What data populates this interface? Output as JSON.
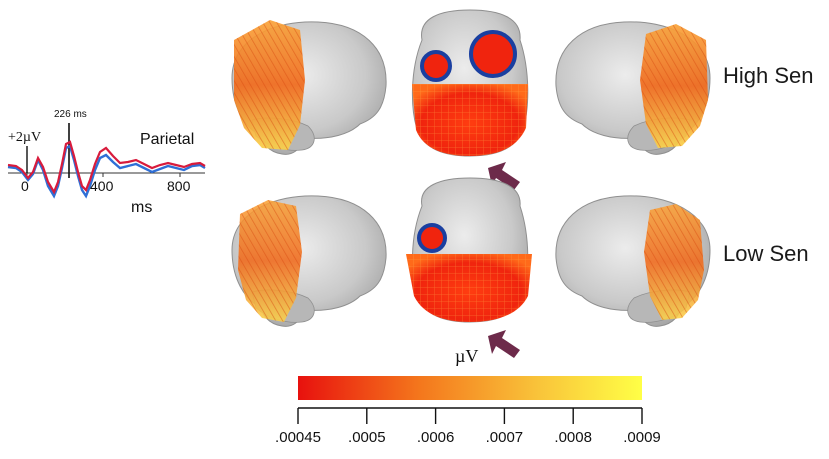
{
  "erp": {
    "latency_label": "226 ms",
    "amplitude_label": "+2",
    "amplitude_unit": "µV",
    "region_label": "Parietal",
    "x_ticks": [
      "0",
      "400",
      "800"
    ],
    "x_axis_label": "ms",
    "series_colors": [
      "#d81b3c",
      "#2f6fd6"
    ]
  },
  "rows": [
    {
      "label": "High Sen"
    },
    {
      "label": "Low Sen"
    }
  ],
  "colorbar": {
    "unit": "µV",
    "ticks": [
      ".00045",
      ".0005",
      ".0006",
      ".0007",
      ".0008",
      ".0009"
    ],
    "gradient": [
      "#e8110e",
      "#f4761c",
      "#f9c43a",
      "#ffff46"
    ]
  },
  "colors": {
    "brain": "#c9c9c9",
    "activation_circle": "#1a3fa0",
    "arrow": "#6d2a4a"
  }
}
